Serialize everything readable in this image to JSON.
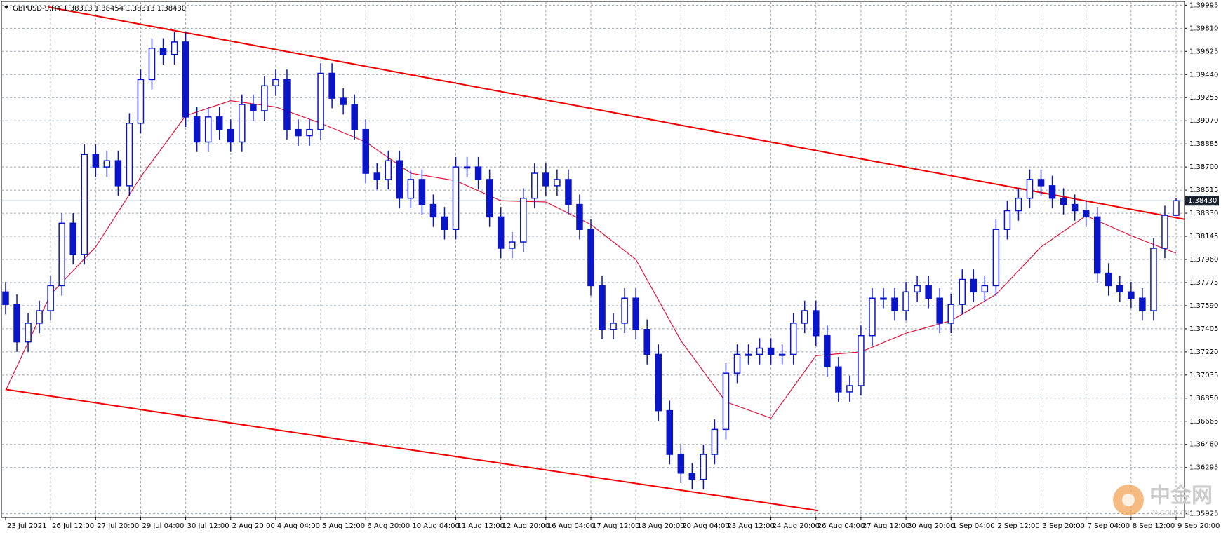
{
  "chart_data": {
    "type": "candlestick",
    "title": "GBPUSD-S,H4  1.38313 1.38454 1.38313 1.38430",
    "color": "#0a14c8",
    "x_labels": [
      "23 Jul 2021",
      "26 Jul 12:00",
      "27 Jul 20:00",
      "29 Jul 04:00",
      "30 Jul 12:00",
      "2 Aug 20:00",
      "4 Aug 04:00",
      "5 Aug 12:00",
      "6 Aug 20:00",
      "10 Aug 04:00",
      "11 Aug 12:00",
      "12 Aug 20:00",
      "16 Aug 04:00",
      "17 Aug 12:00",
      "18 Aug 20:00",
      "20 Aug 04:00",
      "23 Aug 12:00",
      "24 Aug 20:00",
      "26 Aug 04:00",
      "27 Aug 12:00",
      "30 Aug 20:00",
      "1 Sep 04:00",
      "2 Sep 12:00",
      "3 Sep 20:00",
      "7 Sep 04:00",
      "8 Sep 12:00",
      "9 Sep 20:00"
    ],
    "open": [
      1.377,
      1.376,
      1.373,
      1.3745,
      1.3755,
      1.3775,
      1.3825,
      1.38,
      1.388,
      1.387,
      1.3875,
      1.3855,
      1.3905,
      1.394,
      1.3965,
      1.396,
      1.397,
      1.391,
      1.389,
      1.391,
      1.39,
      1.389,
      1.392,
      1.3915,
      1.3935,
      1.394,
      1.39,
      1.3895,
      1.39,
      1.3945,
      1.3925,
      1.392,
      1.39,
      1.3865,
      1.386,
      1.3875,
      1.3845,
      1.386,
      1.384,
      1.383,
      1.382,
      1.387,
      1.387,
      1.386,
      1.383,
      1.3805,
      1.381,
      1.3845,
      1.3865,
      1.3855,
      1.386,
      1.384,
      1.382,
      1.3775,
      1.374,
      1.3745,
      1.3765,
      1.374,
      1.372,
      1.3675,
      1.364,
      1.3625,
      1.362,
      1.364,
      1.366,
      1.3705,
      1.372,
      1.372,
      1.3725,
      1.372,
      1.372,
      1.3745,
      1.3755,
      1.3735,
      1.371,
      1.369,
      1.3695,
      1.3735,
      1.3765,
      1.3765,
      1.3755,
      1.377,
      1.3775,
      1.3765,
      1.3745,
      1.376,
      1.378,
      1.377,
      1.3775,
      1.382,
      1.3835,
      1.3845,
      1.386,
      1.3855,
      1.3845,
      1.384,
      1.3835,
      1.383,
      1.3785,
      1.3775,
      1.377,
      1.3765,
      1.3755,
      1.3805,
      1.38313
    ],
    "high": [
      1.3778,
      1.3768,
      1.3753,
      1.3763,
      1.3783,
      1.3833,
      1.3833,
      1.3888,
      1.3888,
      1.3883,
      1.3883,
      1.3913,
      1.3948,
      1.3973,
      1.3973,
      1.3978,
      1.3978,
      1.3918,
      1.3918,
      1.3918,
      1.3908,
      1.3928,
      1.3928,
      1.3943,
      1.3948,
      1.3948,
      1.3908,
      1.3908,
      1.3953,
      1.3953,
      1.3933,
      1.3928,
      1.3908,
      1.3873,
      1.3883,
      1.3883,
      1.3868,
      1.3868,
      1.3848,
      1.3838,
      1.3878,
      1.3878,
      1.3878,
      1.3868,
      1.3838,
      1.3818,
      1.3853,
      1.3873,
      1.3873,
      1.3868,
      1.3868,
      1.3848,
      1.3828,
      1.3783,
      1.3753,
      1.3773,
      1.3773,
      1.3748,
      1.3728,
      1.3683,
      1.3648,
      1.3633,
      1.3648,
      1.3668,
      1.3713,
      1.3728,
      1.3728,
      1.3733,
      1.3733,
      1.3728,
      1.3753,
      1.3763,
      1.3763,
      1.3743,
      1.3718,
      1.3703,
      1.3743,
      1.3773,
      1.3773,
      1.3773,
      1.3778,
      1.3783,
      1.3783,
      1.3773,
      1.3768,
      1.3788,
      1.3788,
      1.3783,
      1.3828,
      1.3843,
      1.3853,
      1.3868,
      1.3868,
      1.3863,
      1.3853,
      1.3848,
      1.3843,
      1.3838,
      1.3793,
      1.3783,
      1.3778,
      1.3773,
      1.3813,
      1.3839,
      1.38454
    ],
    "low": [
      1.3752,
      1.3722,
      1.3722,
      1.3737,
      1.3747,
      1.3767,
      1.3792,
      1.3792,
      1.3862,
      1.3862,
      1.3847,
      1.3847,
      1.3897,
      1.3932,
      1.3952,
      1.3952,
      1.3902,
      1.3882,
      1.3882,
      1.3892,
      1.3882,
      1.3882,
      1.3907,
      1.3907,
      1.3927,
      1.3892,
      1.3887,
      1.3887,
      1.3892,
      1.3917,
      1.3912,
      1.3892,
      1.3857,
      1.3852,
      1.3852,
      1.3837,
      1.3837,
      1.3832,
      1.3822,
      1.3812,
      1.3812,
      1.3862,
      1.3852,
      1.3822,
      1.3797,
      1.3797,
      1.3802,
      1.3837,
      1.3847,
      1.3847,
      1.3832,
      1.3812,
      1.3767,
      1.3732,
      1.3732,
      1.3737,
      1.3732,
      1.3712,
      1.3667,
      1.3632,
      1.3617,
      1.3612,
      1.3612,
      1.3632,
      1.3652,
      1.3697,
      1.3712,
      1.3712,
      1.3712,
      1.3712,
      1.3712,
      1.3737,
      1.3727,
      1.3702,
      1.3682,
      1.3682,
      1.3687,
      1.3727,
      1.3757,
      1.3747,
      1.3747,
      1.3762,
      1.3757,
      1.3737,
      1.3737,
      1.3752,
      1.3762,
      1.3762,
      1.3767,
      1.3812,
      1.3827,
      1.3837,
      1.3847,
      1.3837,
      1.3832,
      1.3827,
      1.3822,
      1.3777,
      1.3767,
      1.3762,
      1.3757,
      1.3747,
      1.3747,
      1.3797,
      1.38313
    ],
    "close": [
      1.376,
      1.373,
      1.3745,
      1.3755,
      1.3775,
      1.3825,
      1.38,
      1.388,
      1.387,
      1.3875,
      1.3855,
      1.3905,
      1.394,
      1.3965,
      1.396,
      1.397,
      1.391,
      1.389,
      1.391,
      1.39,
      1.389,
      1.392,
      1.3915,
      1.3935,
      1.394,
      1.39,
      1.3895,
      1.39,
      1.3945,
      1.3925,
      1.392,
      1.39,
      1.3865,
      1.386,
      1.3875,
      1.3845,
      1.386,
      1.384,
      1.383,
      1.382,
      1.387,
      1.387,
      1.386,
      1.383,
      1.3805,
      1.381,
      1.3845,
      1.3865,
      1.3855,
      1.386,
      1.384,
      1.382,
      1.3775,
      1.374,
      1.3745,
      1.3765,
      1.374,
      1.372,
      1.3675,
      1.364,
      1.3625,
      1.362,
      1.364,
      1.366,
      1.3705,
      1.372,
      1.372,
      1.3725,
      1.372,
      1.372,
      1.3745,
      1.3755,
      1.3735,
      1.371,
      1.369,
      1.3695,
      1.3735,
      1.3765,
      1.3765,
      1.3755,
      1.377,
      1.3775,
      1.3765,
      1.3745,
      1.376,
      1.378,
      1.377,
      1.3775,
      1.382,
      1.3835,
      1.3845,
      1.386,
      1.3855,
      1.3845,
      1.384,
      1.3835,
      1.383,
      1.3785,
      1.3775,
      1.377,
      1.3765,
      1.3755,
      1.3805,
      1.38313,
      1.3843
    ],
    "ma": {
      "color": "#e0143c",
      "x": [
        0,
        4,
        8,
        12,
        16,
        20,
        24,
        28,
        32,
        36,
        40,
        44,
        48,
        52,
        56,
        60,
        64,
        68,
        72,
        76,
        80,
        84,
        88,
        92,
        96,
        100,
        104
      ],
      "values": [
        1.3691,
        1.3768,
        1.3806,
        1.3862,
        1.3911,
        1.3923,
        1.3918,
        1.3905,
        1.389,
        1.3865,
        1.3859,
        1.3843,
        1.3842,
        1.3824,
        1.3796,
        1.3731,
        1.3682,
        1.3669,
        1.3719,
        1.3722,
        1.3737,
        1.3747,
        1.3768,
        1.3806,
        1.3831,
        1.3815,
        1.3801
      ]
    },
    "trend_lines": [
      {
        "color": "#f00000",
        "x": [
          3.8,
          106
        ],
        "y": [
          1.3998,
          1.3826
        ]
      },
      {
        "color": "#f00000",
        "x": [
          0,
          72.2
        ],
        "y": [
          1.3692,
          1.3595
        ]
      }
    ],
    "current_price": {
      "value": 1.3843,
      "label": "1.38430"
    },
    "ylim": [
      1.35895,
      1.40025
    ],
    "yticks": [
      1.39995,
      {
        "value": 1.3981,
        "label": "1.39810"
      },
      1.39625,
      {
        "value": 1.3944,
        "label": "1.39440"
      },
      1.39255,
      {
        "value": 1.3907,
        "label": "1.39070"
      },
      1.38885,
      {
        "value": 1.387,
        "label": "1.38700"
      },
      1.38515,
      {
        "value": 1.3833,
        "label": "1.38330"
      },
      1.38145,
      {
        "value": 1.3796,
        "label": "1.37960"
      },
      1.37775,
      {
        "value": 1.3759,
        "label": "1.37590"
      },
      1.37405,
      {
        "value": 1.3722,
        "label": "1.37220"
      },
      1.37035,
      {
        "value": 1.3685,
        "label": "1.36850"
      },
      1.36665,
      {
        "value": 1.3648,
        "label": "1.36480"
      },
      1.36295,
      1.35925
    ],
    "grid": true,
    "watermark": {
      "name": "中金网",
      "site": "CNGOLD.CN"
    }
  }
}
